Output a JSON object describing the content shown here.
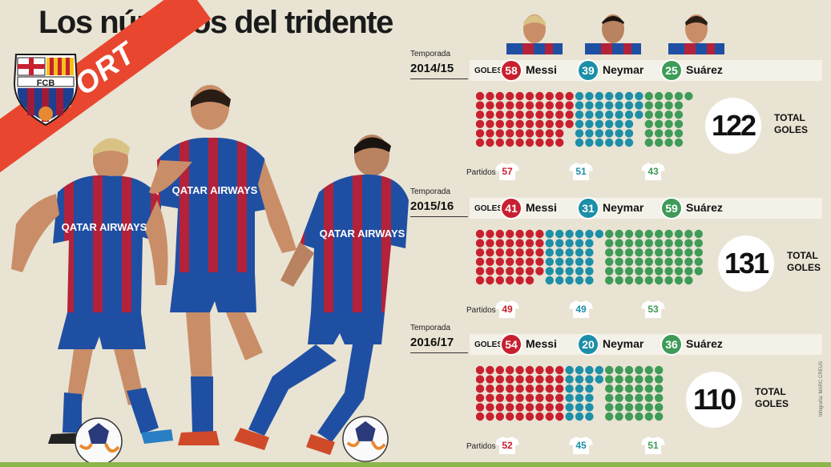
{
  "title": "Los números del tridente",
  "brand": "SPORT",
  "crest_text": "FCB",
  "shirt_sponsor": "QATAR AIRWAYS",
  "labels": {
    "temporada": "Temporada",
    "goles": "GOLES",
    "partidos": "Partidos",
    "total": "TOTAL",
    "goles_total": "GOLES"
  },
  "players": [
    {
      "name": "Messi",
      "color": "#c8202f"
    },
    {
      "name": "Neymar",
      "color": "#1d8fa8"
    },
    {
      "name": "Suárez",
      "color": "#3f9b58"
    }
  ],
  "seasons": [
    {
      "year": "2014/15",
      "goals": [
        58,
        39,
        25
      ],
      "total": "122",
      "matches": [
        57,
        51,
        43
      ]
    },
    {
      "year": "2015/16",
      "goals": [
        41,
        31,
        59
      ],
      "total": "131",
      "matches": [
        49,
        49,
        53
      ]
    },
    {
      "year": "2016/17",
      "goals": [
        54,
        20,
        36
      ],
      "total": "110",
      "matches": [
        52,
        45,
        51
      ]
    }
  ],
  "colors": {
    "background": "#e9e3d3",
    "sash": "#e8462f",
    "dot_messi": "#c8202f",
    "dot_neymar": "#1d8fa8",
    "dot_suarez": "#3f9b58"
  },
  "credit": "Infografía: MARC CREUS"
}
